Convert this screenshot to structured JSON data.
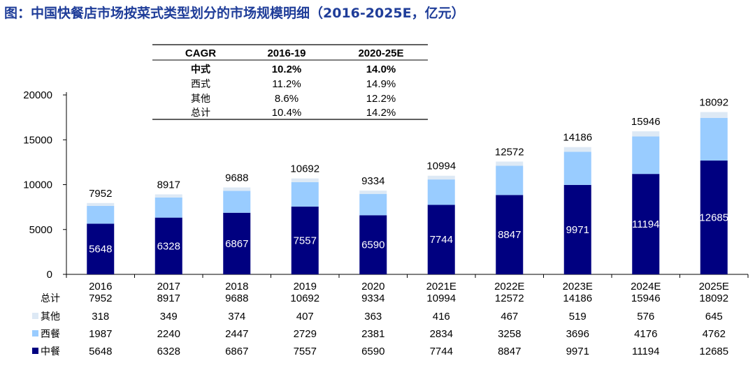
{
  "chart_data": {
    "type": "bar",
    "stacked": true,
    "title": "图：中国快餐店市场按菜式类型划分的市场规模明细（2016-2025E，亿元）",
    "categories": [
      "2016",
      "2017",
      "2018",
      "2019",
      "2020",
      "2021E",
      "2022E",
      "2023E",
      "2024E",
      "2025E"
    ],
    "series": [
      {
        "name": "中餐",
        "color": "#000080",
        "values": [
          5648,
          6328,
          6867,
          7557,
          6590,
          7744,
          8847,
          9971,
          11194,
          12685
        ]
      },
      {
        "name": "西餐",
        "color": "#99ccff",
        "values": [
          1987,
          2240,
          2447,
          2729,
          2381,
          2834,
          3258,
          3696,
          4176,
          4762
        ]
      },
      {
        "name": "其他",
        "color": "#dde9f5",
        "values": [
          318,
          349,
          374,
          407,
          363,
          416,
          467,
          519,
          576,
          645
        ]
      }
    ],
    "totals_label": "总计",
    "totals": [
      7952,
      8917,
      9688,
      10692,
      9334,
      10994,
      12572,
      14186,
      15946,
      18092
    ],
    "ylim": [
      0,
      20000
    ],
    "yticks": [
      0,
      5000,
      10000,
      15000,
      20000
    ],
    "grid": false,
    "cagr_table": {
      "headers": [
        "CAGR",
        "2016-19",
        "2020-25E"
      ],
      "rows": [
        {
          "label": "中式",
          "v1": "10.2%",
          "v2": "14.0%",
          "bold": true
        },
        {
          "label": "西式",
          "v1": "11.2%",
          "v2": "14.9%",
          "bold": false
        },
        {
          "label": "其他",
          "v1": "8.6%",
          "v2": "12.2%",
          "bold": false
        },
        {
          "label": "总计",
          "v1": "10.4%",
          "v2": "14.2%",
          "bold": false
        }
      ]
    }
  }
}
